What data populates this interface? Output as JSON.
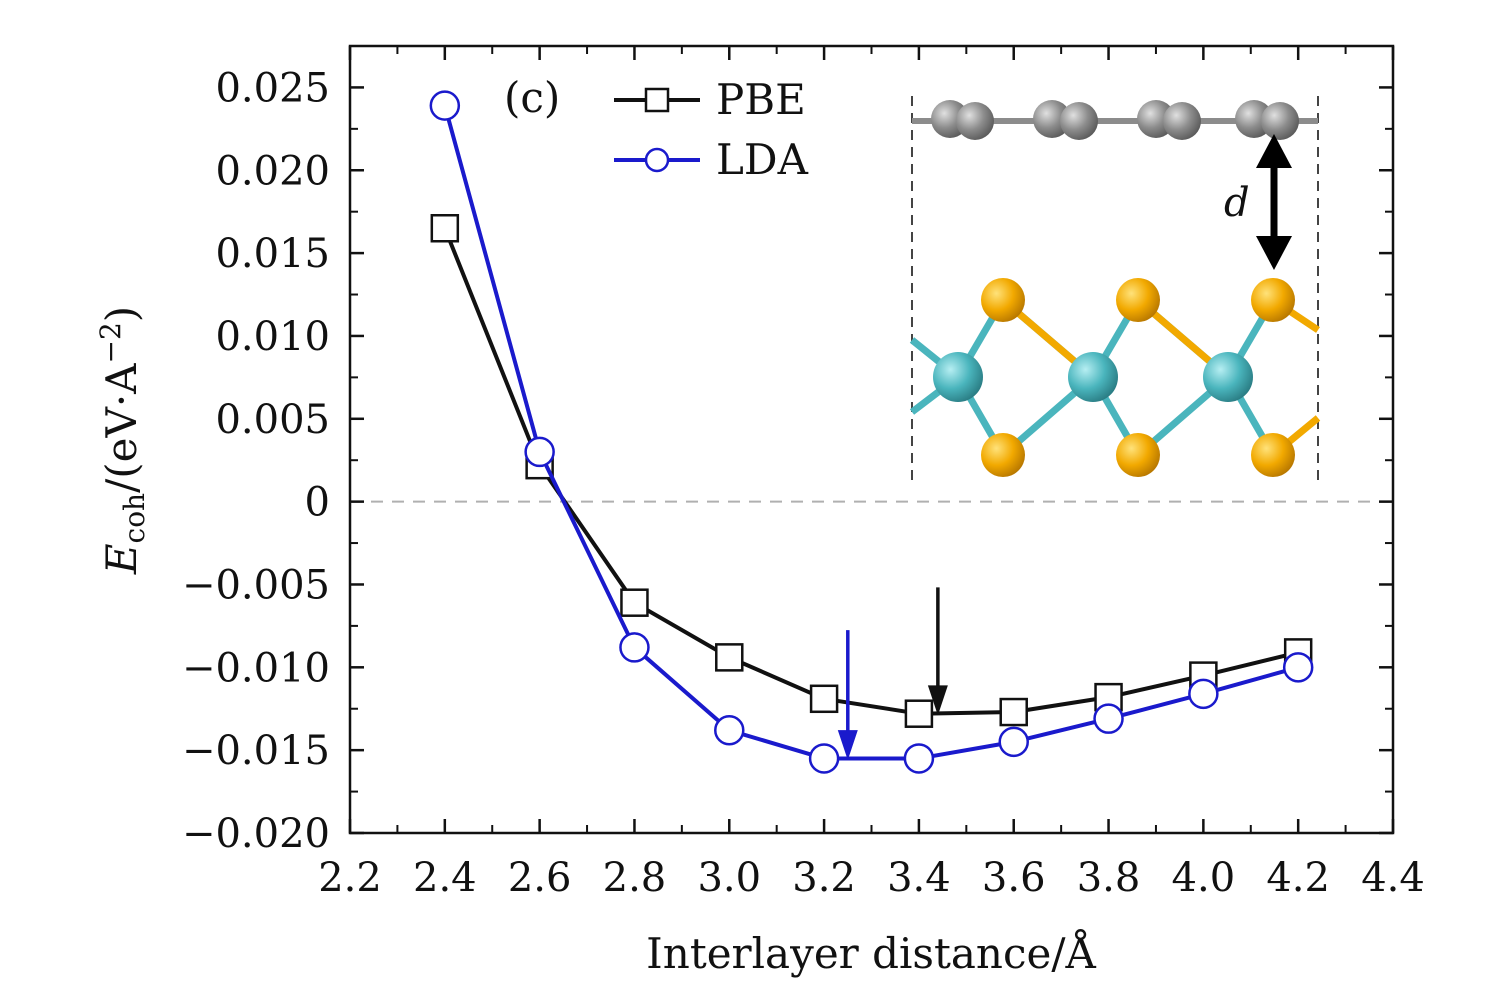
{
  "chart_data": {
    "type": "line",
    "panel_label": "(c)",
    "xlabel": "Interlayer distance/Å",
    "ylabel": {
      "symbol": "E",
      "subscript": "coh",
      "units_prefix": "/(eV·A",
      "units_exponent": "−2",
      "units_suffix": ")"
    },
    "xlim": [
      2.2,
      4.4
    ],
    "ylim": [
      -0.02,
      0.0275
    ],
    "x_ticks": [
      2.2,
      2.4,
      2.6,
      2.8,
      3.0,
      3.2,
      3.4,
      3.6,
      3.8,
      4.0,
      4.2,
      4.4
    ],
    "x_tick_labels": [
      "2.2",
      "2.4",
      "2.6",
      "2.8",
      "3.0",
      "3.2",
      "3.4",
      "3.6",
      "3.8",
      "4.0",
      "4.2",
      "4.4"
    ],
    "y_ticks": [
      -0.02,
      -0.015,
      -0.01,
      -0.005,
      0,
      0.005,
      0.01,
      0.015,
      0.02,
      0.025
    ],
    "y_tick_labels": [
      "−0.020",
      "−0.015",
      "−0.010",
      "−0.005",
      "0",
      "0.005",
      "0.010",
      "0.015",
      "0.020",
      "0.025"
    ],
    "zero_line": true,
    "x": [
      2.4,
      2.6,
      2.8,
      3.0,
      3.2,
      3.4,
      3.6,
      3.8,
      4.0,
      4.2
    ],
    "series": [
      {
        "name": "PBE",
        "marker": "square",
        "color": "#111111",
        "values": [
          0.0165,
          0.0022,
          -0.0061,
          -0.0094,
          -0.0119,
          -0.0128,
          -0.0127,
          -0.0118,
          -0.0105,
          -0.0091
        ],
        "minimum_marker": {
          "x": 3.44,
          "y": -0.0129,
          "color": "#111111"
        }
      },
      {
        "name": "LDA",
        "marker": "circle",
        "color": "#1a1acc",
        "values": [
          0.0239,
          0.003,
          -0.0088,
          -0.0138,
          -0.0155,
          -0.0155,
          -0.0145,
          -0.0131,
          -0.0116,
          -0.01
        ],
        "minimum_marker": {
          "x": 3.25,
          "y": -0.0156,
          "color": "#1a1acc"
        }
      }
    ],
    "legend_position": "top-center",
    "inset": {
      "label": "d",
      "description_colors": {
        "top_layer": "#8c8c8c",
        "chalcogen": "#f2a900",
        "metal": "#4ab5bd"
      }
    }
  }
}
